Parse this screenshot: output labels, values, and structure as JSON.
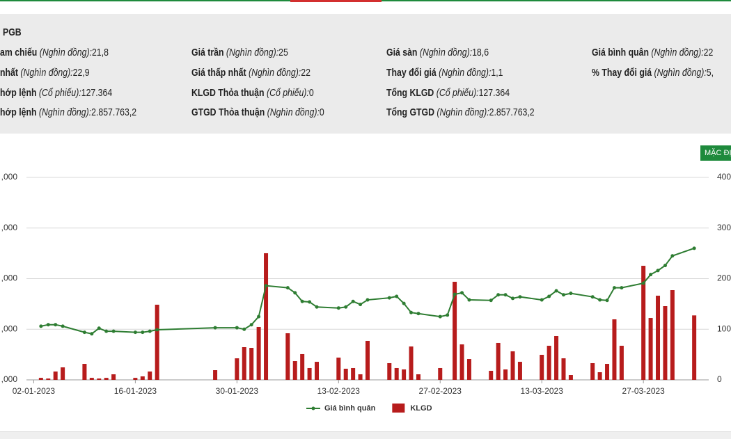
{
  "top_button": "MẶC ĐỊ",
  "info": {
    "symbol": "PGB",
    "rows": [
      [
        {
          "label": "am chiếu",
          "unit": "(Nghìn đồng):",
          "value": "21,8"
        },
        {
          "label": "Giá trần",
          "unit": "(Nghìn đồng):",
          "value": "25"
        },
        {
          "label": "Giá sàn",
          "unit": "(Nghìn đồng):",
          "value": "18,6"
        },
        {
          "label": "Giá bình quân",
          "unit": "(Nghìn đồng):",
          "value": "22"
        }
      ],
      [
        {
          "label": "nhất",
          "unit": "(Nghìn đồng):",
          "value": "22,9"
        },
        {
          "label": "Giá thấp nhất",
          "unit": "(Nghìn đồng):",
          "value": "22"
        },
        {
          "label": "Thay đổi giá",
          "unit": "(Nghìn đồng):",
          "value": "1,1"
        },
        {
          "label": "% Thay đổi giá",
          "unit": "(Nghìn đồng):",
          "value": "5,"
        }
      ],
      [
        {
          "label": "hớp lệnh",
          "unit": "(Cổ phiếu):",
          "value": "127.364"
        },
        {
          "label": "KLGD Thỏa thuận",
          "unit": "(Cổ phiếu):",
          "value": "0"
        },
        {
          "label": "Tổng KLGD",
          "unit": "(Cổ phiếu):",
          "value": "127.364"
        }
      ],
      [
        {
          "label": "hớp lệnh",
          "unit": "(Nghìn đồng):",
          "value": "2.857.763,2"
        },
        {
          "label": "GTGD Thỏa thuận",
          "unit": "(Nghìn đồng):",
          "value": "0"
        },
        {
          "label": "Tổng GTGD",
          "unit": "(Nghìn đồng):",
          "value": "2.857.763,2"
        }
      ]
    ]
  },
  "chart_data": {
    "type": "combo",
    "x": [
      "03-01-2023",
      "04-01-2023",
      "05-01-2023",
      "06-01-2023",
      "09-01-2023",
      "10-01-2023",
      "11-01-2023",
      "12-01-2023",
      "13-01-2023",
      "16-01-2023",
      "17-01-2023",
      "18-01-2023",
      "19-01-2023",
      "27-01-2023",
      "30-01-2023",
      "31-01-2023",
      "01-02-2023",
      "02-02-2023",
      "03-02-2023",
      "06-02-2023",
      "07-02-2023",
      "08-02-2023",
      "09-02-2023",
      "10-02-2023",
      "13-02-2023",
      "14-02-2023",
      "15-02-2023",
      "16-02-2023",
      "17-02-2023",
      "20-02-2023",
      "21-02-2023",
      "22-02-2023",
      "23-02-2023",
      "24-02-2023",
      "27-02-2023",
      "28-02-2023",
      "01-03-2023",
      "02-03-2023",
      "03-03-2023",
      "06-03-2023",
      "07-03-2023",
      "08-03-2023",
      "09-03-2023",
      "10-03-2023",
      "13-03-2023",
      "14-03-2023",
      "15-03-2023",
      "16-03-2023",
      "17-03-2023",
      "20-03-2023",
      "21-03-2023",
      "22-03-2023",
      "23-03-2023",
      "24-03-2023",
      "27-03-2023",
      "28-03-2023",
      "29-03-2023",
      "30-03-2023",
      "31-03-2023",
      "03-04-2023"
    ],
    "xlim": [
      "01-01-2023",
      "05-04-2023"
    ],
    "xticks": [
      "02-01-2023",
      "16-01-2023",
      "30-01-2023",
      "13-02-2023",
      "27-02-2023",
      "13-03-2023",
      "27-03-2023"
    ],
    "ylim": [
      0,
      400000
    ],
    "yticks": [
      {
        "value": 0,
        "label": ",000"
      },
      {
        "value": 100000,
        "label": ",000"
      },
      {
        "value": 200000,
        "label": ",000"
      },
      {
        "value": 300000,
        "label": ",000"
      },
      {
        "value": 400000,
        "label": ",000"
      }
    ],
    "y2lim": [
      0,
      400
    ],
    "y2ticks": [
      0,
      100,
      200,
      300,
      400
    ],
    "grid": true,
    "series": [
      {
        "name": "Giá bình quân",
        "type": "line",
        "axis": "y2",
        "color": "#2e7d32",
        "values": [
          106,
          109,
          109,
          106,
          94,
          91,
          102,
          96,
          96,
          94,
          94,
          96,
          99,
          103,
          103,
          100,
          109,
          125,
          186,
          182,
          172,
          155,
          154,
          144,
          142,
          144,
          155,
          149,
          158,
          162,
          165,
          151,
          133,
          131,
          125,
          128,
          169,
          172,
          158,
          157,
          168,
          168,
          161,
          164,
          158,
          165,
          176,
          168,
          171,
          164,
          158,
          157,
          182,
          182,
          191,
          208,
          216,
          226,
          245,
          260
        ]
      },
      {
        "name": "KLGD",
        "type": "bar",
        "color": "#b71c1c",
        "values": [
          4000,
          2700,
          16500,
          24700,
          31600,
          4000,
          2700,
          4000,
          11000,
          4000,
          6900,
          16500,
          148500,
          19200,
          42600,
          64600,
          63200,
          104500,
          250200,
          92100,
          37100,
          50900,
          23400,
          35700,
          44000,
          22000,
          23400,
          11000,
          77000,
          33000,
          23400,
          20600,
          66000,
          11000,
          23400,
          0,
          193800,
          70100,
          41200,
          17900,
          72900,
          20600,
          56400,
          35700,
          49500,
          67400,
          86600,
          42600,
          9600,
          33000,
          15100,
          31600,
          119600,
          67400,
          225400,
          122300,
          166300,
          145700,
          177300,
          127364
        ]
      }
    ]
  }
}
